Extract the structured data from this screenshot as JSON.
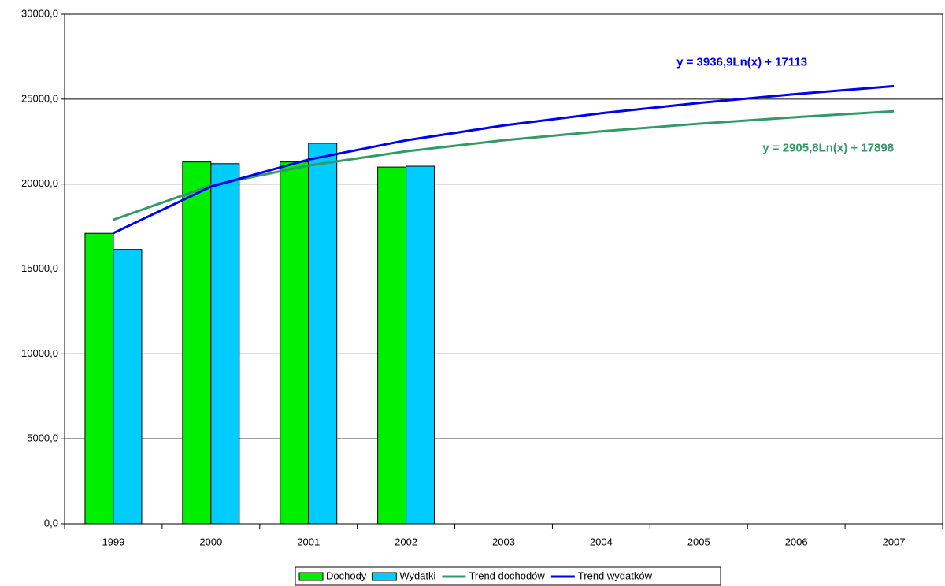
{
  "chart_data": {
    "type": "bar",
    "categories": [
      "1999",
      "2000",
      "2001",
      "2002",
      "2003",
      "2004",
      "2005",
      "2006",
      "2007"
    ],
    "series": [
      {
        "name": "Dochody",
        "type": "bar",
        "color": "#00ee00",
        "values": [
          17100,
          21300,
          21300,
          21000,
          null,
          null,
          null,
          null,
          null
        ]
      },
      {
        "name": "Wydatki",
        "type": "bar",
        "color": "#00ccff",
        "values": [
          16150,
          21200,
          22400,
          21050,
          null,
          null,
          null,
          null,
          null
        ]
      },
      {
        "name": "Trend dochodów",
        "type": "line",
        "color": "#339966",
        "values": [
          17898,
          19912,
          21090,
          21926,
          22575,
          23104,
          23552,
          23940,
          24283
        ],
        "trendline_label": "y = 2905,8Ln(x) + 17898"
      },
      {
        "name": "Trend wydatków",
        "type": "line",
        "color": "#0000ee",
        "values": [
          17113,
          19842,
          21438,
          22571,
          23449,
          24167,
          24774,
          25299,
          25763
        ],
        "trendline_label": "y = 3936,9Ln(x) + 17113"
      }
    ],
    "ylim": [
      0,
      30000
    ],
    "yticks": [
      {
        "value": 0,
        "label": "0,0"
      },
      {
        "value": 5000,
        "label": "5000,0"
      },
      {
        "value": 10000,
        "label": "10000,0"
      },
      {
        "value": 15000,
        "label": "15000,0"
      },
      {
        "value": 20000,
        "label": "20000,0"
      },
      {
        "value": 25000,
        "label": "25000,0"
      },
      {
        "value": 30000,
        "label": "30000,0"
      }
    ],
    "grid": true,
    "legend": "bottom"
  }
}
